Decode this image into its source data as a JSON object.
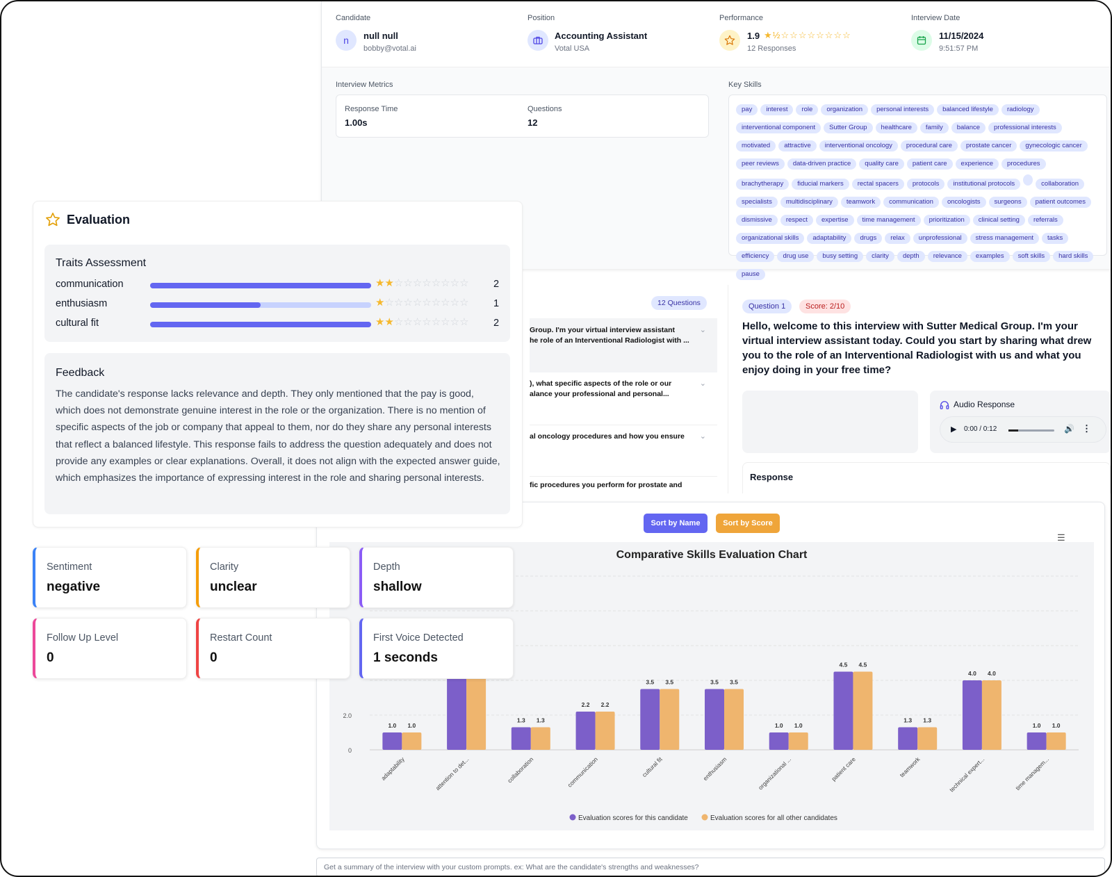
{
  "header": {
    "candidate": {
      "label": "Candidate",
      "initial": "n",
      "name": "null null",
      "email": "bobby@votal.ai"
    },
    "position": {
      "label": "Position",
      "title": "Accounting Assistant",
      "company": "Votal USA"
    },
    "performance": {
      "label": "Performance",
      "score": "1.9",
      "responses": "12 Responses",
      "stars_filled": 1.9,
      "stars_total": 10
    },
    "interview_date": {
      "label": "Interview Date",
      "date": "11/15/2024",
      "time": "9:51:57 PM"
    }
  },
  "metrics": {
    "title": "Interview Metrics",
    "response_time_label": "Response Time",
    "response_time": "1.00s",
    "questions_label": "Questions",
    "questions": "12"
  },
  "key_skills": {
    "title": "Key Skills",
    "tags": [
      "pay",
      "interest",
      "role",
      "organization",
      "personal interests",
      "balanced lifestyle",
      "radiology",
      "interventional component",
      "Sutter Group",
      "healthcare",
      "family",
      "balance",
      "professional interests",
      "motivated",
      "attractive",
      "interventional oncology",
      "procedural care",
      "prostate cancer",
      "gynecologic cancer",
      "peer reviews",
      "data-driven practice",
      "quality care",
      "patient care",
      "experience",
      "procedures",
      "brachytherapy",
      "fiducial markers",
      "rectal spacers",
      "protocols",
      "institutional protocols",
      "",
      "collaboration",
      "specialists",
      "multidisciplinary",
      "teamwork",
      "communication",
      "oncologists",
      "surgeons",
      "patient outcomes",
      "dismissive",
      "respect",
      "expertise",
      "time management",
      "prioritization",
      "clinical setting",
      "referrals",
      "organizational skills",
      "adaptability",
      "drugs",
      "relax",
      "unprofessional",
      "stress management",
      "tasks",
      "efficiency",
      "drug use",
      "busy setting",
      "clarity",
      "depth",
      "relevance",
      "examples",
      "soft skills",
      "hard skills",
      "pause"
    ]
  },
  "questions_panel": {
    "count_badge": "12 Questions",
    "items": [
      {
        "line1": "Group. I'm your virtual interview assistant",
        "line2": "he role of an Interventional Radiologist with ..."
      },
      {
        "line1": "), what specific aspects of the role or our",
        "line2": "alance your professional and personal..."
      },
      {
        "line1": "al oncology procedures and how you ensure",
        "line2": ""
      },
      {
        "line1": "fic procedures you perform for prostate and",
        "line2": ""
      }
    ]
  },
  "question_detail": {
    "question_badge": "Question 1",
    "score_badge": "Score: 2/10",
    "text": "Hello, welcome to this interview with Sutter Medical Group. I'm your virtual interview assistant today. Could you start by sharing what drew you to the role of an Interventional Radiologist with us and what you enjoy doing in your free time?",
    "audio_label": "Audio Response",
    "audio_time": "0:00 / 0:12",
    "response_label": "Response"
  },
  "evaluation": {
    "title": "Evaluation",
    "traits_title": "Traits Assessment",
    "traits": [
      {
        "name": "communication",
        "value": "2",
        "score": 2
      },
      {
        "name": "enthusiasm",
        "value": "1",
        "score": 1
      },
      {
        "name": "cultural fit",
        "value": "2",
        "score": 2
      }
    ],
    "feedback_title": "Feedback",
    "feedback": "The candidate's response lacks relevance and depth. They only mentioned that the pay is good, which does not demonstrate genuine interest in the role or the organization. There is no mention of specific aspects of the job or company that appeal to them, nor do they share any personal interests that reflect a balanced lifestyle. This response fails to address the question adequately and does not provide any examples or clear explanations. Overall, it does not align with the expected answer guide, which emphasizes the importance of expressing interest in the role and sharing personal interests."
  },
  "metric_cards": [
    {
      "title": "Sentiment",
      "value": "negative",
      "color": "#3b82f6"
    },
    {
      "title": "Clarity",
      "value": "unclear",
      "color": "#f59e0b"
    },
    {
      "title": "Depth",
      "value": "shallow",
      "color": "#8b5cf6"
    },
    {
      "title": "Follow Up Level",
      "value": "0",
      "color": "#ec4899"
    },
    {
      "title": "Restart Count",
      "value": "0",
      "color": "#ef4444"
    },
    {
      "title": "First Voice Detected",
      "value": "1 seconds",
      "color": "#6366f1"
    }
  ],
  "chart_controls": {
    "sort_by_name": "Sort by Name",
    "sort_by_score": "Sort by Score"
  },
  "chart_data": {
    "type": "bar",
    "title": "Comparative Skills Evaluation Chart",
    "categories": [
      "adaptability",
      "attention to det...",
      "collaboration",
      "communication",
      "cultural fit",
      "enthusiasm",
      "organizational ...",
      "patient care",
      "teamwork",
      "technical expert...",
      "time managem..."
    ],
    "series": [
      {
        "name": "Evaluation scores for this candidate",
        "color": "#7c5fc9",
        "values": [
          1.0,
          4.5,
          1.3,
          2.2,
          3.5,
          3.5,
          1.0,
          4.5,
          1.3,
          4.0,
          1.0
        ]
      },
      {
        "name": "Evaluation scores for all other candidates",
        "color": "#efb56e",
        "values": [
          1.0,
          4.5,
          1.3,
          2.2,
          3.5,
          3.5,
          1.0,
          4.5,
          1.3,
          4.0,
          1.0
        ]
      }
    ],
    "y_ticks": [
      "0",
      "2.0"
    ],
    "ylim": [
      0,
      10
    ],
    "legend_position": "bottom",
    "grid": true
  },
  "prompt_input": {
    "placeholder": "Get a summary of the interview with your custom prompts. ex: What are the candidate's strengths and weaknesses?"
  }
}
